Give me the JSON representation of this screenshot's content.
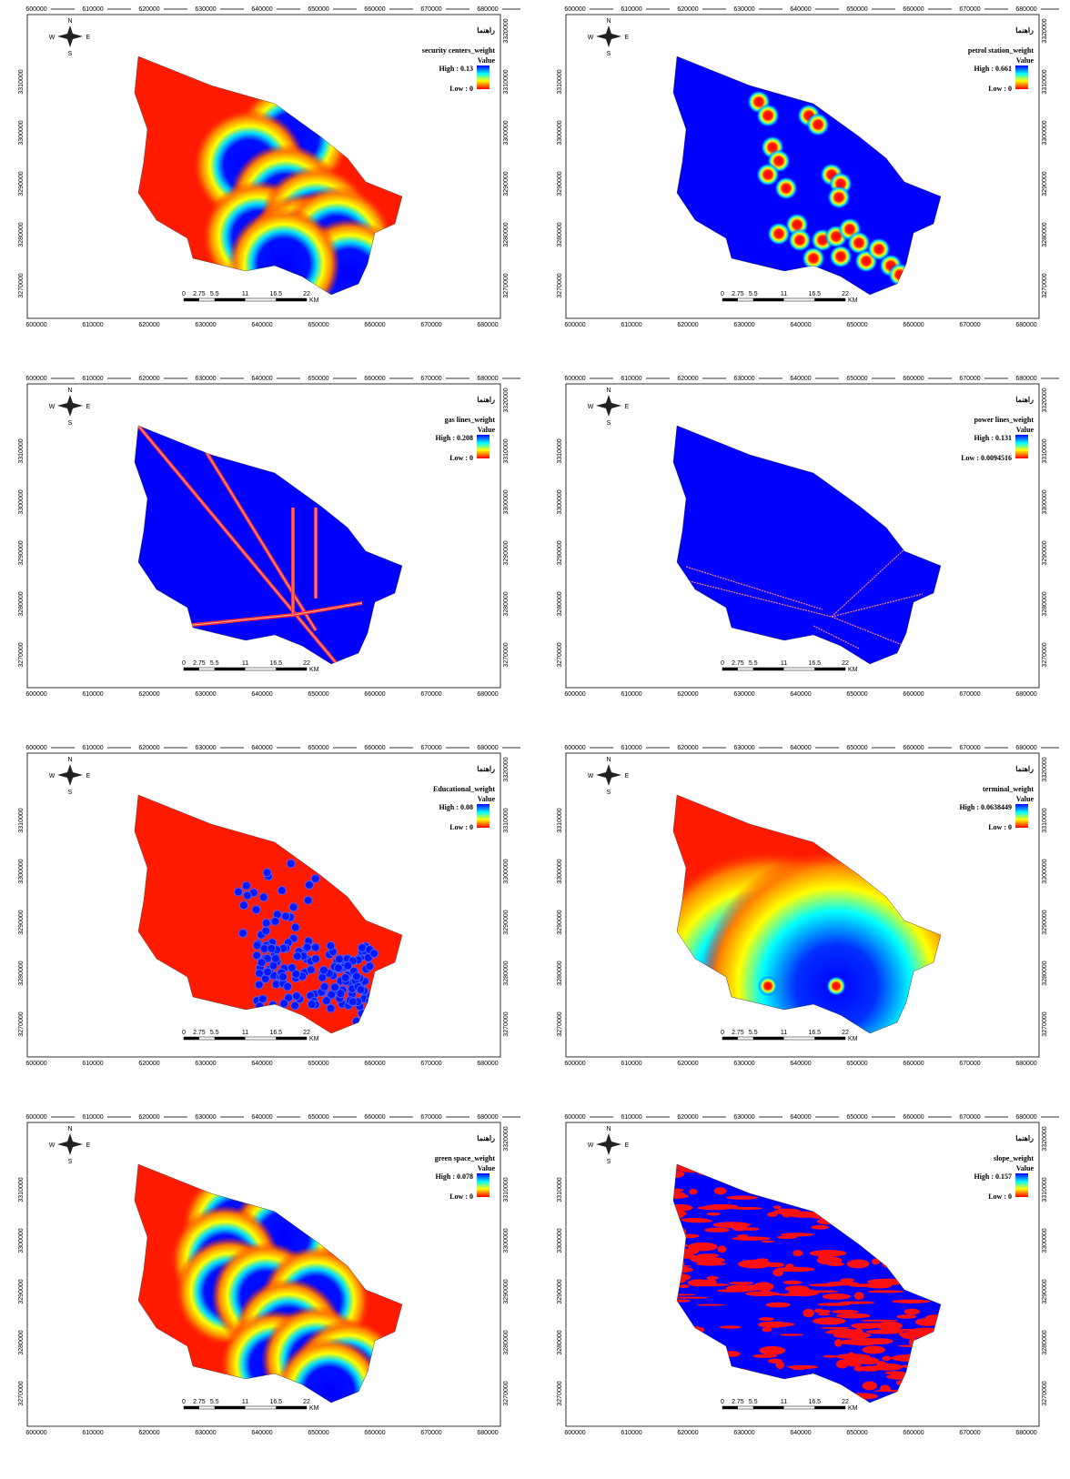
{
  "legend_heading": "راهنما",
  "value_label": "Value",
  "compass": {
    "n": "N",
    "s": "S",
    "e": "E",
    "w": "W"
  },
  "x_ticks": [
    "600000",
    "610000",
    "620000",
    "630000",
    "640000",
    "650000",
    "660000",
    "670000",
    "680000"
  ],
  "y_ticks": [
    "3270000",
    "3280000",
    "3290000",
    "3300000",
    "3310000",
    "3320000"
  ],
  "scale_bar": {
    "labels": [
      "0",
      "2.75",
      "5.5",
      "11",
      "16.5",
      "22"
    ],
    "unit": "KM"
  },
  "panels": [
    {
      "title": "security centers_weight",
      "high": "High : 0.13",
      "low": "Low : 0"
    },
    {
      "title": "petrol station_weight",
      "high": "High : 0.661",
      "low": "Low : 0"
    },
    {
      "title": "gas lines_weight",
      "high": "High : 0.208",
      "low": "Low : 0"
    },
    {
      "title": "power lines_weight",
      "high": "High : 0.131",
      "low": "Low : 0.0094516"
    },
    {
      "title": "Educational_weight",
      "high": "High : 0.08",
      "low": "Low : 0"
    },
    {
      "title": "terminal_weight",
      "high": "High : 0.0638449",
      "low": "Low : 0"
    },
    {
      "title": "green space_weight",
      "high": "High : 0.078",
      "low": "Low : 0"
    },
    {
      "title": "slope_weight",
      "high": "High : 0.157",
      "low": "Low : 0"
    }
  ]
}
